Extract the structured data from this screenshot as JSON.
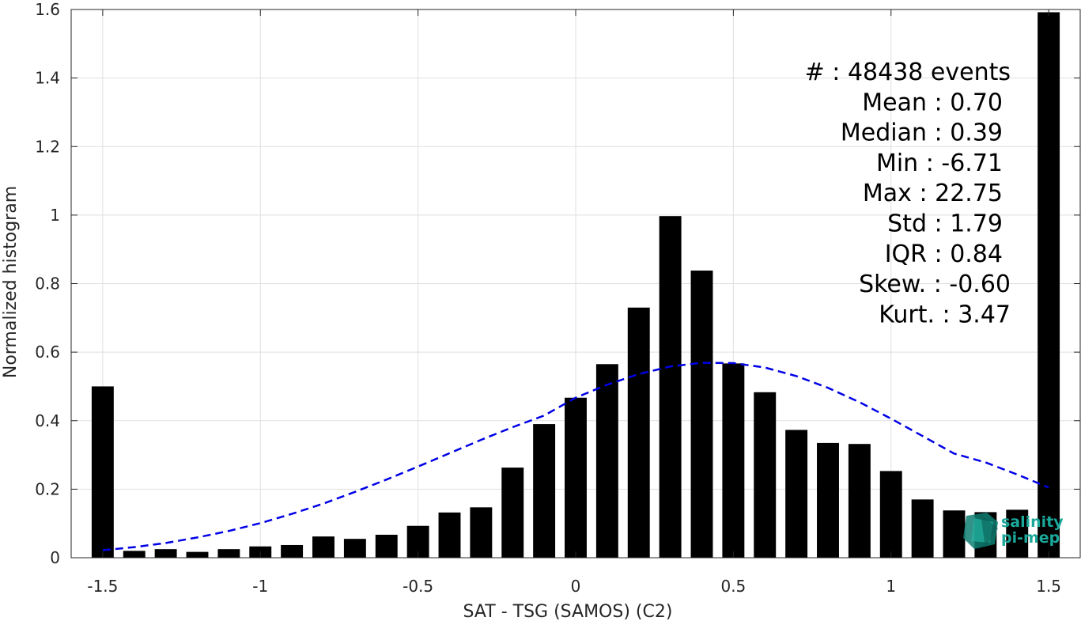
{
  "chart_data": {
    "type": "bar",
    "title": "",
    "xlabel": "SAT - TSG (SAMOS) (C2)",
    "ylabel": "Normalized histogram",
    "xlim": [
      -1.6,
      1.6
    ],
    "ylim": [
      0,
      1.6
    ],
    "grid": true,
    "x_ticks": [
      -1.5,
      -1,
      -0.5,
      0,
      0.5,
      1,
      1.5
    ],
    "x_tick_labels": [
      "-1.5",
      "-1",
      "-0.5",
      "0",
      "0.5",
      "1",
      "1.5"
    ],
    "y_ticks": [
      0,
      0.2,
      0.4,
      0.6,
      0.8,
      1,
      1.2,
      1.4,
      1.6
    ],
    "y_tick_labels": [
      "0",
      "0.2",
      "0.4",
      "0.6",
      "0.8",
      "1",
      "1.2",
      "1.4",
      "1.6"
    ],
    "bar_color": "#000000",
    "bins": {
      "x": [
        -1.5,
        -1.4,
        -1.3,
        -1.2,
        -1.1,
        -1.0,
        -0.9,
        -0.8,
        -0.7,
        -0.6,
        -0.5,
        -0.4,
        -0.3,
        -0.2,
        -0.1,
        0.0,
        0.1,
        0.2,
        0.3,
        0.4,
        0.5,
        0.6,
        0.7,
        0.8,
        0.9,
        1.0,
        1.1,
        1.2,
        1.3,
        1.4,
        1.5
      ],
      "values": [
        0.5,
        0.02,
        0.025,
        0.017,
        0.025,
        0.033,
        0.037,
        0.062,
        0.055,
        0.067,
        0.093,
        0.132,
        0.147,
        0.263,
        0.39,
        0.467,
        0.565,
        0.73,
        0.997,
        0.838,
        0.567,
        0.483,
        0.373,
        0.335,
        0.332,
        0.253,
        0.17,
        0.138,
        0.133,
        0.14,
        1.592
      ]
    },
    "fit_curve": {
      "style": "dashed",
      "color": "#0000e6",
      "x": [
        -1.5,
        -1.4,
        -1.3,
        -1.2,
        -1.1,
        -1.0,
        -0.9,
        -0.8,
        -0.7,
        -0.6,
        -0.5,
        -0.4,
        -0.3,
        -0.2,
        -0.1,
        0.0,
        0.1,
        0.2,
        0.3,
        0.4,
        0.5,
        0.6,
        0.7,
        0.8,
        0.9,
        1.0,
        1.1,
        1.2,
        1.3,
        1.4,
        1.5
      ],
      "values": [
        0.022,
        0.031,
        0.043,
        0.059,
        0.078,
        0.101,
        0.128,
        0.158,
        0.192,
        0.228,
        0.266,
        0.305,
        0.344,
        0.381,
        0.415,
        0.467,
        0.505,
        0.536,
        0.558,
        0.569,
        0.568,
        0.555,
        0.53,
        0.496,
        0.454,
        0.406,
        0.355,
        0.304,
        0.278,
        0.243,
        0.205
      ]
    },
    "annotation_lines": [
      "#  : 48438 events",
      "Mean : 0.70",
      "Median : 0.39",
      "Min : -6.71",
      "Max : 22.75",
      "Std : 1.79",
      "IQR : 0.84",
      "Skew. : -0.60",
      "Kurt. : 3.47"
    ],
    "annotation_placement": "top-right"
  },
  "logo": {
    "line1": "salinity",
    "line2": "pi-mep",
    "color": "#1aa89a"
  }
}
